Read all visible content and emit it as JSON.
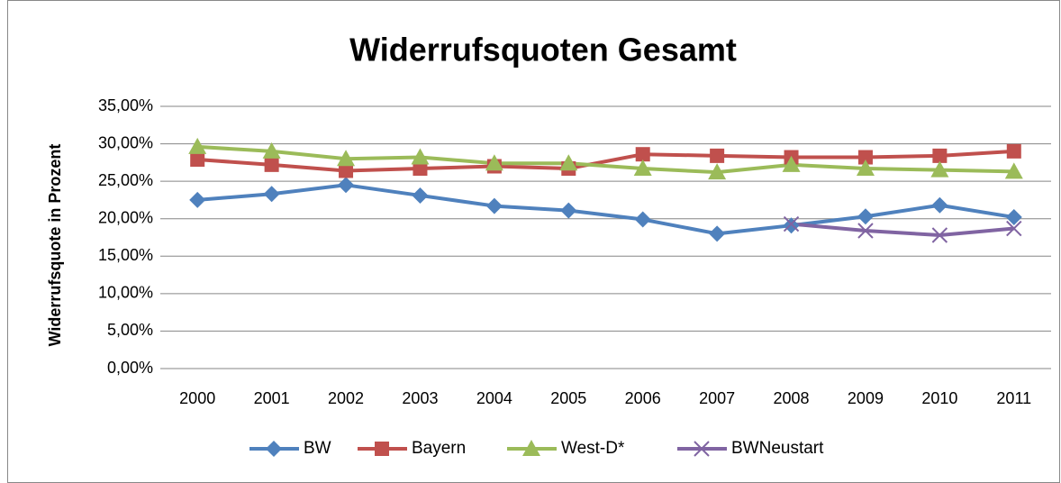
{
  "chart_data": {
    "type": "line",
    "title": "Widerrufsquoten Gesamt",
    "y_label": "Widerrufsquote in Prozent",
    "categories": [
      "2000",
      "2001",
      "2002",
      "2003",
      "2004",
      "2005",
      "2006",
      "2007",
      "2008",
      "2009",
      "2010",
      "2011"
    ],
    "ylim": [
      0,
      35
    ],
    "yticks": [
      {
        "value": 0,
        "label": "0,00%"
      },
      {
        "value": 5,
        "label": "5,00%"
      },
      {
        "value": 10,
        "label": "10,00%"
      },
      {
        "value": 15,
        "label": "15,00%"
      },
      {
        "value": 20,
        "label": "20,00%"
      },
      {
        "value": 25,
        "label": "25,00%"
      },
      {
        "value": 30,
        "label": "30,00%"
      },
      {
        "value": 35,
        "label": "35,00%"
      }
    ],
    "grid": true,
    "legend": "bottom",
    "series": [
      {
        "name": "BW",
        "color": "#4f81bd",
        "marker": "diamond",
        "values": [
          22.5,
          23.3,
          24.5,
          23.1,
          21.7,
          21.1,
          19.9,
          18.0,
          19.1,
          20.3,
          21.8,
          20.2
        ]
      },
      {
        "name": "Bayern",
        "color": "#c0504d",
        "marker": "square",
        "values": [
          27.9,
          27.2,
          26.4,
          26.7,
          27.0,
          26.7,
          28.6,
          28.4,
          28.2,
          28.2,
          28.4,
          29.0
        ]
      },
      {
        "name": "West-D*",
        "color": "#9bbb59",
        "marker": "triangle",
        "values": [
          29.6,
          29.0,
          28.0,
          28.2,
          27.4,
          27.4,
          26.7,
          26.2,
          27.2,
          26.7,
          26.5,
          26.3
        ]
      },
      {
        "name": "BWNeustart",
        "color": "#8064a2",
        "marker": "x",
        "values": [
          null,
          null,
          null,
          null,
          null,
          null,
          null,
          null,
          19.3,
          18.4,
          17.8,
          18.7
        ]
      }
    ]
  }
}
